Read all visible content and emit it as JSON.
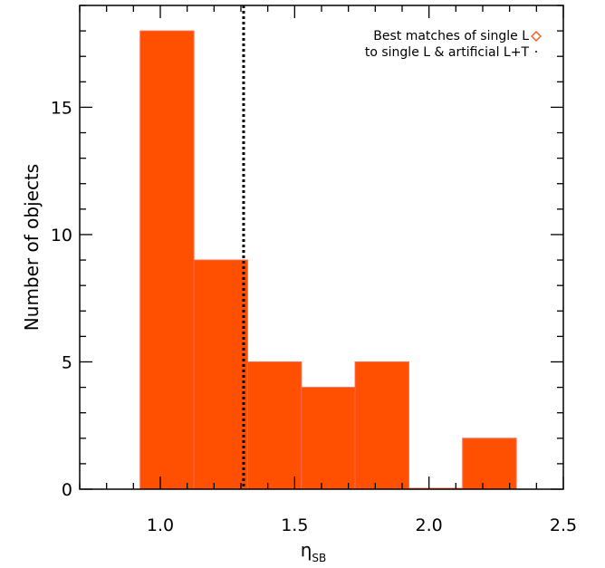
{
  "chart_data": {
    "type": "bar",
    "bins": [
      {
        "x0": 0.925,
        "x1": 1.125,
        "value": 18
      },
      {
        "x0": 1.125,
        "x1": 1.325,
        "value": 9
      },
      {
        "x0": 1.325,
        "x1": 1.525,
        "value": 5
      },
      {
        "x0": 1.525,
        "x1": 1.725,
        "value": 4
      },
      {
        "x0": 1.725,
        "x1": 1.925,
        "value": 5
      },
      {
        "x0": 1.925,
        "x1": 2.125,
        "value": 0
      },
      {
        "x0": 2.125,
        "x1": 2.325,
        "value": 2
      }
    ],
    "xlim": [
      0.7,
      2.5
    ],
    "ylim": [
      0,
      19
    ],
    "xticks": [
      1.0,
      1.5,
      2.0,
      2.5
    ],
    "xtick_labels": [
      "1.0",
      "1.5",
      "2.0",
      "2.5"
    ],
    "yticks": [
      0,
      5,
      10,
      15
    ],
    "ytick_labels": [
      "0",
      "5",
      "10",
      "15"
    ],
    "xlabel": "η",
    "xlabel_sub": "SB",
    "ylabel": "Number of objects",
    "reference_line_x": 1.31,
    "legend": {
      "position": "top-right",
      "entries": [
        "Best matches of single L",
        "to single L & artificial L+T"
      ]
    },
    "grid": false
  },
  "colors": {
    "bar_fill": "#ff4f00",
    "bar_edge": "#ff6a4d",
    "legend_marker": "#ff4f00",
    "axes": "#000000"
  }
}
